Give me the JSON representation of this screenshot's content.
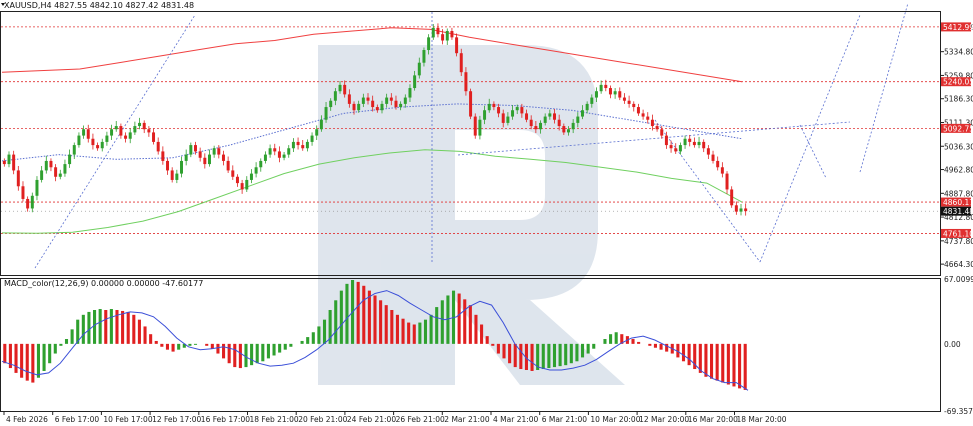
{
  "header": {
    "symbol_line": "XAUUSD,H4  4827.55 4842.10 4827.42 4831.48",
    "macd_line": "MACD_color(12,26,9) 0.00000 0.00000 -47.60177"
  },
  "colors": {
    "up": "#2fa02f",
    "down": "#e02020",
    "ma_red": "#f04040",
    "ma_green": "#70d060",
    "dotted": "#5a6fd0",
    "level": "#e03030",
    "macd_signal": "#3b4fd8",
    "watermark": "#d7e0ea"
  },
  "chart_data": [
    {
      "type": "candlestick",
      "title": "XAUUSD,H4",
      "ylim": [
        4630,
        5460
      ],
      "y_ticks": [
        "5412.99",
        "5334.80",
        "5259.80",
        "5186.30",
        "5111.30",
        "5036.30",
        "4962.80",
        "4887.80",
        "4812.80",
        "4737.80",
        "4664.30"
      ],
      "x_ticks": [
        "4 Feb 2026",
        "6 Feb 17:00",
        "10 Feb 17:00",
        "12 Feb 17:00",
        "16 Feb 17:00",
        "18 Feb 21:00",
        "20 Feb 21:00",
        "24 Feb 21:00",
        "26 Feb 21:00",
        "2 Mar 21:00",
        "4 Mar 21:00",
        "6 Mar 21:00",
        "10 Mar 20:00",
        "12 Mar 20:00",
        "16 Mar 20:00",
        "18 Mar 20:00"
      ],
      "levels": [
        {
          "value": 5412.99,
          "label": "5412.99"
        },
        {
          "value": 5240.05,
          "label": "5240.05"
        },
        {
          "value": 5092.75,
          "label": "5092.75"
        },
        {
          "value": 4860.17,
          "label": "4860.17"
        },
        {
          "value": 4761.1,
          "label": "4761.10"
        }
      ],
      "current_price": {
        "value": 4831.48,
        "label": "4831.48"
      },
      "candles_close": [
        4980,
        5010,
        4960,
        4910,
        4870,
        4840,
        4880,
        4930,
        4960,
        4990,
        4970,
        4940,
        4950,
        4980,
        5010,
        5040,
        5070,
        5090,
        5060,
        5040,
        5030,
        5050,
        5070,
        5090,
        5100,
        5070,
        5060,
        5080,
        5100,
        5110,
        5090,
        5080,
        5050,
        5020,
        4990,
        4960,
        4930,
        4950,
        4990,
        5010,
        5040,
        5020,
        5000,
        4980,
        5010,
        5030,
        5010,
        4990,
        4960,
        4940,
        4920,
        4900,
        4930,
        4950,
        4970,
        4990,
        5010,
        5030,
        5020,
        5000,
        5010,
        5030,
        5050,
        5040,
        5030,
        5050,
        5070,
        5090,
        5120,
        5160,
        5180,
        5210,
        5230,
        5200,
        5170,
        5150,
        5170,
        5190,
        5180,
        5160,
        5150,
        5170,
        5190,
        5180,
        5160,
        5170,
        5190,
        5220,
        5260,
        5300,
        5340,
        5380,
        5410,
        5390,
        5370,
        5400,
        5380,
        5330,
        5270,
        5210,
        5130,
        5070,
        5120,
        5150,
        5170,
        5160,
        5140,
        5110,
        5130,
        5150,
        5160,
        5140,
        5120,
        5100,
        5090,
        5110,
        5130,
        5140,
        5120,
        5100,
        5080,
        5090,
        5110,
        5130,
        5150,
        5170,
        5190,
        5210,
        5230,
        5220,
        5200,
        5210,
        5190,
        5180,
        5170,
        5160,
        5140,
        5130,
        5120,
        5100,
        5090,
        5070,
        5040,
        5030,
        5020,
        5040,
        5060,
        5050,
        5040,
        5050,
        5030,
        5010,
        4990,
        4970,
        4950,
        4900,
        4850,
        4830,
        4840,
        4831.48
      ],
      "ma_red": [
        5270,
        5275,
        5280,
        5300,
        5320,
        5340,
        5360,
        5370,
        5390,
        5400,
        5410,
        5405,
        5380,
        5360,
        5340,
        5320,
        5300,
        5280,
        5260,
        5240
      ],
      "ma_green": [
        4763,
        4762,
        4765,
        4780,
        4800,
        4830,
        4870,
        4910,
        4950,
        4980,
        5000,
        5015,
        5025,
        5020,
        5005,
        4995,
        4985,
        4970,
        4955,
        4935,
        4920,
        4860
      ],
      "ma_dotted": [
        4990,
        5010,
        4995,
        5000,
        5040,
        5090,
        5140,
        5160,
        5170,
        5165,
        5150,
        5120,
        5090,
        5060
      ]
    },
    {
      "type": "bar",
      "title": "MACD_color(12,26,9)",
      "ylim": [
        -69.35786,
        67.00997
      ],
      "y_ticks": [
        "67.00997",
        "0.00",
        "-69.35786"
      ],
      "values": [
        -20,
        -25,
        -30,
        -35,
        -38,
        -40,
        -35,
        -28,
        -20,
        -10,
        -2,
        5,
        15,
        25,
        30,
        33,
        35,
        36,
        35,
        36,
        35,
        34,
        33,
        30,
        25,
        18,
        10,
        3,
        -3,
        -6,
        -8,
        -6,
        -4,
        -2,
        -1,
        0,
        -2,
        -5,
        -10,
        -15,
        -20,
        -24,
        -25,
        -24,
        -22,
        -20,
        -18,
        -15,
        -12,
        -9,
        -6,
        -3,
        0,
        3,
        7,
        12,
        18,
        25,
        35,
        45,
        55,
        62,
        66,
        64,
        60,
        55,
        50,
        45,
        40,
        35,
        30,
        26,
        22,
        20,
        22,
        25,
        30,
        38,
        45,
        50,
        55,
        52,
        46,
        40,
        30,
        20,
        8,
        -2,
        -10,
        -15,
        -20,
        -24,
        -26,
        -27,
        -28,
        -27,
        -26,
        -25,
        -24,
        -23,
        -22,
        -20,
        -18,
        -14,
        -10,
        -5,
        0,
        5,
        10,
        12,
        10,
        8,
        5,
        2,
        0,
        -2,
        -4,
        -6,
        -8,
        -10,
        -14,
        -18,
        -22,
        -26,
        -30,
        -34,
        -36,
        -38,
        -40,
        -42,
        -44,
        -46,
        -47.60177
      ],
      "signal": [
        -18,
        -22,
        -28,
        -32,
        -30,
        -20,
        -5,
        10,
        20,
        26,
        30,
        33,
        32,
        28,
        18,
        6,
        -3,
        -6,
        -5,
        -3,
        -6,
        -14,
        -20,
        -23,
        -22,
        -20,
        -14,
        -6,
        4,
        18,
        32,
        45,
        52,
        55,
        50,
        42,
        35,
        28,
        25,
        28,
        38,
        44,
        40,
        22,
        0,
        -15,
        -24,
        -27,
        -27,
        -25,
        -22,
        -16,
        -8,
        0,
        6,
        8,
        4,
        -2,
        -8,
        -16,
        -28,
        -36,
        -40,
        -40,
        -48
      ]
    }
  ]
}
